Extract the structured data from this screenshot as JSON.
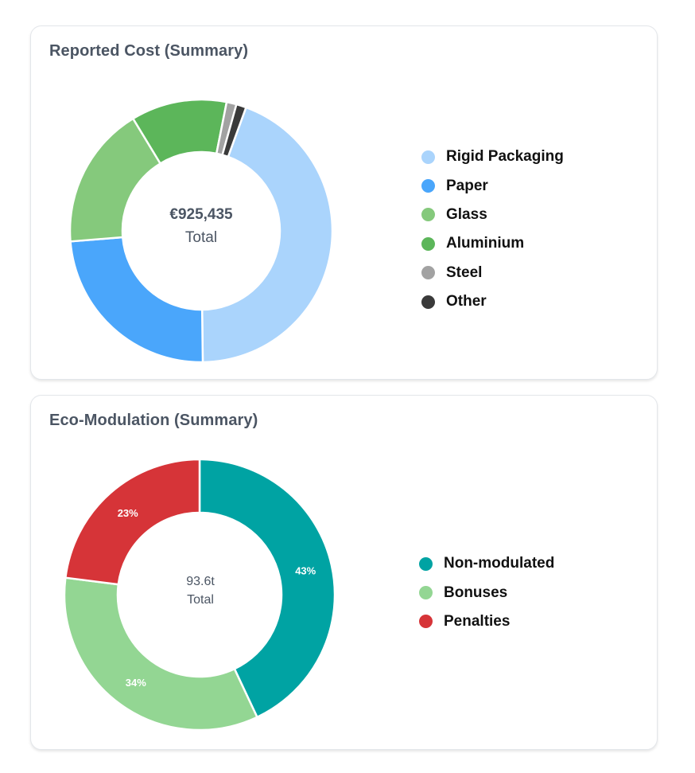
{
  "chart_data": [
    {
      "type": "pie",
      "variant": "donut",
      "title": "Reported Cost (Summary)",
      "center_value": "€925,435",
      "center_label": "Total",
      "categories": [
        "Rigid Packaging",
        "Paper",
        "Glass",
        "Aluminium",
        "Steel",
        "Other"
      ],
      "values": [
        43.5,
        23.5,
        17.3,
        11.6,
        1.2,
        1.2
      ],
      "colors": [
        "#aad4fc",
        "#4aa6fb",
        "#85c97c",
        "#5cb65a",
        "#a2a2a2",
        "#3a3a3a"
      ],
      "slice_labels": [
        "",
        "",
        "",
        "",
        "",
        ""
      ],
      "legend_position": "right"
    },
    {
      "type": "pie",
      "variant": "donut",
      "title": "Eco-Modulation (Summary)",
      "center_value": "93.6t",
      "center_label": "Total",
      "categories": [
        "Non-modulated",
        "Bonuses",
        "Penalties"
      ],
      "values": [
        43,
        34,
        23
      ],
      "colors": [
        "#00a3a3",
        "#93d693",
        "#d63438"
      ],
      "slice_labels": [
        "43%",
        "34%",
        "23%"
      ],
      "legend_position": "right"
    }
  ]
}
